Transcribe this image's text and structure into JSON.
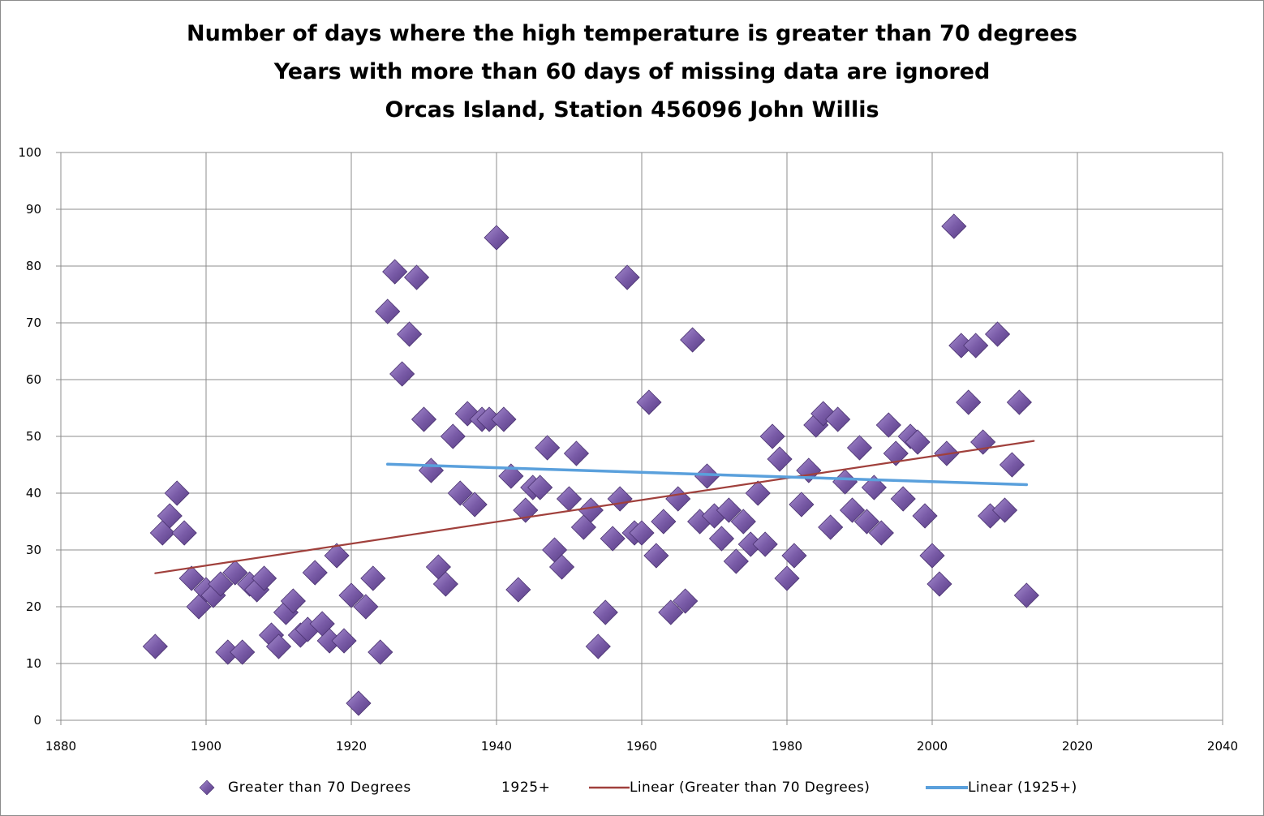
{
  "chart_data": {
    "type": "scatter",
    "title_lines": [
      "Number of days where the high temperature is greater than 70 degrees",
      "Years with more than 60 days of missing data are ignored",
      "Orcas Island, Station 456096 John Willis"
    ],
    "xlim": [
      1880,
      2040
    ],
    "ylim": [
      0,
      100
    ],
    "x_ticks": [
      "1880",
      "1900",
      "1920",
      "1940",
      "1960",
      "1980",
      "2000",
      "2020",
      "2040"
    ],
    "y_ticks": [
      "0",
      "10",
      "20",
      "30",
      "40",
      "50",
      "60",
      "70",
      "80",
      "90",
      "100"
    ],
    "grid": true,
    "legend_position": "bottom",
    "series": [
      {
        "name": "Greater than 70 Degrees",
        "marker": "diamond",
        "color": "#7a5ca8",
        "points": [
          [
            1893,
            13
          ],
          [
            1894,
            33
          ],
          [
            1895,
            36
          ],
          [
            1896,
            40
          ],
          [
            1897,
            33
          ],
          [
            1898,
            25
          ],
          [
            1899,
            20
          ],
          [
            1900,
            23
          ],
          [
            1901,
            22
          ],
          [
            1902,
            24
          ],
          [
            1903,
            12
          ],
          [
            1904,
            26
          ],
          [
            1905,
            12
          ],
          [
            1906,
            24
          ],
          [
            1907,
            23
          ],
          [
            1908,
            25
          ],
          [
            1909,
            15
          ],
          [
            1910,
            13
          ],
          [
            1911,
            19
          ],
          [
            1912,
            21
          ],
          [
            1913,
            15
          ],
          [
            1914,
            16
          ],
          [
            1915,
            26
          ],
          [
            1916,
            17
          ],
          [
            1917,
            14
          ],
          [
            1918,
            29
          ],
          [
            1919,
            14
          ],
          [
            1920,
            22
          ],
          [
            1921,
            3
          ],
          [
            1922,
            20
          ],
          [
            1923,
            25
          ],
          [
            1924,
            12
          ],
          [
            1925,
            72
          ],
          [
            1926,
            79
          ],
          [
            1927,
            61
          ],
          [
            1928,
            68
          ],
          [
            1929,
            78
          ],
          [
            1930,
            53
          ],
          [
            1931,
            44
          ],
          [
            1932,
            27
          ],
          [
            1933,
            24
          ],
          [
            1934,
            50
          ],
          [
            1935,
            40
          ],
          [
            1936,
            54
          ],
          [
            1937,
            38
          ],
          [
            1938,
            53
          ],
          [
            1939,
            53
          ],
          [
            1940,
            85
          ],
          [
            1941,
            53
          ],
          [
            1942,
            43
          ],
          [
            1943,
            23
          ],
          [
            1944,
            37
          ],
          [
            1945,
            41
          ],
          [
            1946,
            41
          ],
          [
            1947,
            48
          ],
          [
            1948,
            30
          ],
          [
            1949,
            27
          ],
          [
            1950,
            39
          ],
          [
            1951,
            47
          ],
          [
            1952,
            34
          ],
          [
            1953,
            37
          ],
          [
            1954,
            13
          ],
          [
            1955,
            19
          ],
          [
            1956,
            32
          ],
          [
            1957,
            39
          ],
          [
            1958,
            78
          ],
          [
            1959,
            33
          ],
          [
            1960,
            33
          ],
          [
            1961,
            56
          ],
          [
            1962,
            29
          ],
          [
            1963,
            35
          ],
          [
            1964,
            19
          ],
          [
            1965,
            39
          ],
          [
            1966,
            21
          ],
          [
            1967,
            67
          ],
          [
            1968,
            35
          ],
          [
            1969,
            43
          ],
          [
            1970,
            36
          ],
          [
            1971,
            32
          ],
          [
            1972,
            37
          ],
          [
            1973,
            28
          ],
          [
            1974,
            35
          ],
          [
            1975,
            31
          ],
          [
            1976,
            40
          ],
          [
            1977,
            31
          ],
          [
            1978,
            50
          ],
          [
            1979,
            46
          ],
          [
            1980,
            25
          ],
          [
            1981,
            29
          ],
          [
            1982,
            38
          ],
          [
            1983,
            44
          ],
          [
            1984,
            52
          ],
          [
            1985,
            54
          ],
          [
            1986,
            34
          ],
          [
            1987,
            53
          ],
          [
            1988,
            42
          ],
          [
            1989,
            37
          ],
          [
            1990,
            48
          ],
          [
            1991,
            35
          ],
          [
            1992,
            41
          ],
          [
            1993,
            33
          ],
          [
            1994,
            52
          ],
          [
            1995,
            47
          ],
          [
            1996,
            39
          ],
          [
            1997,
            50
          ],
          [
            1998,
            49
          ],
          [
            1999,
            36
          ],
          [
            2000,
            29
          ],
          [
            2001,
            24
          ],
          [
            2002,
            47
          ],
          [
            2003,
            87
          ],
          [
            2004,
            66
          ],
          [
            2005,
            56
          ],
          [
            2006,
            66
          ],
          [
            2007,
            49
          ],
          [
            2008,
            36
          ],
          [
            2009,
            68
          ],
          [
            2010,
            37
          ],
          [
            2011,
            45
          ],
          [
            2012,
            56
          ],
          [
            2013,
            22
          ]
        ]
      },
      {
        "name": "1925+",
        "marker": "none",
        "points": []
      }
    ],
    "trendlines": [
      {
        "name": "Linear (Greater than 70 Degrees)",
        "color": "#a0403c",
        "from": [
          1893,
          25.9
        ],
        "to": [
          2014,
          49.2
        ]
      },
      {
        "name": "Linear (1925+)",
        "color": "#5aa0dc",
        "from": [
          1925,
          45.1
        ],
        "to": [
          2013,
          41.5
        ]
      }
    ]
  }
}
